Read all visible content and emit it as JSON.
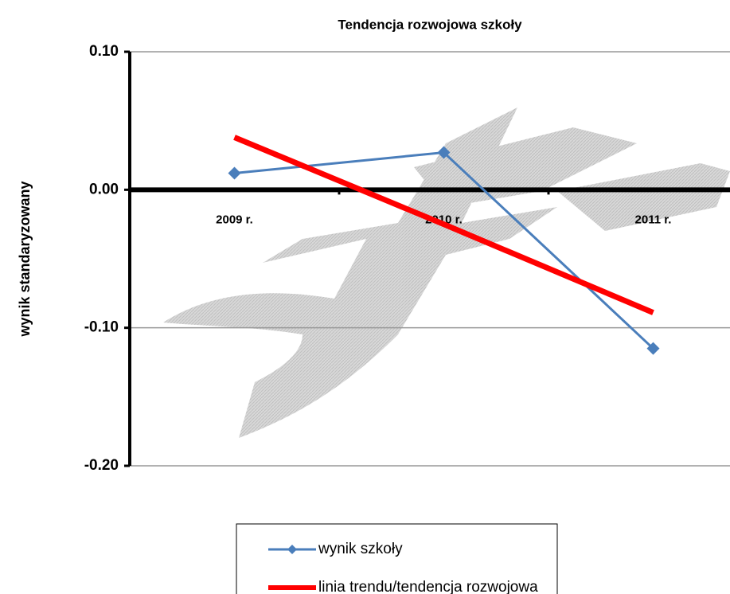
{
  "chart_data": {
    "type": "line",
    "title": "Tendencja rozwojowa szkoły",
    "y_label": "wynik standaryzowany",
    "categories": [
      "2009 r.",
      "2010 r.",
      "2011 r."
    ],
    "series": [
      {
        "name": "wynik szkoły",
        "color": "#4a7ebb",
        "values": [
          0.012,
          0.027,
          -0.115
        ],
        "marker": "diamond"
      },
      {
        "name": "linia trendu/tendencja rozwojowa",
        "color": "#ff0000",
        "values": [
          0.038,
          -0.025,
          -0.089
        ]
      }
    ],
    "ylim": [
      -0.2,
      0.1
    ],
    "yticks": [
      {
        "value": 0.1,
        "label": "0.10"
      },
      {
        "value": 0,
        "label": "0.00"
      },
      {
        "value": -0.1,
        "label": "-0.10"
      },
      {
        "value": -0.2,
        "label": "-0.20"
      }
    ],
    "grid": true
  }
}
